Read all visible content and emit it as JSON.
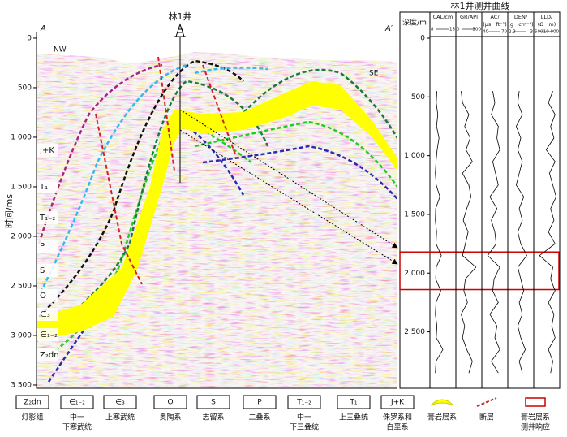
{
  "section": {
    "well": "林1井",
    "a_left": "A",
    "a_right": "A′",
    "nw": "NW",
    "se": "SE",
    "y_label": "时间/ms",
    "ylim": [
      -57,
      3533
    ],
    "yticks": [
      0,
      500,
      {
        "value": 1000,
        "label": "1 000"
      },
      {
        "value": 1500,
        "label": "1 500"
      },
      {
        "value": 2000,
        "label": "2 000"
      },
      {
        "value": 2500,
        "label": "2 500"
      },
      {
        "value": 3000,
        "label": "3 000"
      },
      {
        "value": 3500,
        "label": "3 500"
      }
    ],
    "layers": [
      "J+K",
      "T₁",
      "T₁₋₂",
      "P",
      "S",
      "O",
      "∈₃",
      "∈₁₋₂",
      "Z₂dn"
    ]
  },
  "log": {
    "title": "林1井测井曲线",
    "depth_label": "深度/m",
    "ylim": [
      0,
      2980
    ],
    "yticks": [
      0,
      500,
      {
        "value": 1000,
        "label": "1 000"
      },
      {
        "value": 1500,
        "label": "1 500"
      },
      {
        "value": 2000,
        "label": "2 000"
      },
      {
        "value": 2500,
        "label": "2 500"
      }
    ],
    "highlight": [
      1820,
      2140
    ],
    "depths": [
      450,
      550,
      650,
      750,
      850,
      950,
      1050,
      1150,
      1250,
      1350,
      1450,
      1550,
      1650,
      1750,
      1850,
      1950,
      2050,
      2150,
      2250,
      2350,
      2450,
      2550,
      2650,
      2750,
      2850
    ],
    "tracks": [
      {
        "name": [
          "CAL/cm"
        ],
        "scale": [
          8,
          15
        ],
        "values": [
          9.5,
          9.3,
          9.8,
          9.4,
          10.2,
          9.6,
          9.2,
          9.0,
          9.3,
          10.5,
          9.1,
          9.0,
          9.4,
          9.2,
          11.0,
          9.3,
          9.1,
          10.8,
          9.2,
          9.0,
          9.5,
          9.3,
          11.5,
          9.2,
          9.0
        ]
      },
      {
        "name": [
          "GR/API"
        ],
        "scale": [
          0,
          300
        ],
        "values": [
          40,
          60,
          150,
          90,
          170,
          110,
          200,
          60,
          150,
          180,
          120,
          70,
          140,
          100,
          60,
          250,
          100,
          80,
          130,
          40,
          90,
          60,
          120,
          200,
          150
        ]
      },
      {
        "name": [
          "AC/",
          "(μs · ft⁻¹)"
        ],
        "scale": [
          40,
          70
        ],
        "values": [
          52,
          55,
          50,
          60,
          58,
          62,
          52,
          56,
          60,
          48,
          58,
          50,
          55,
          57,
          45,
          62,
          54,
          52,
          60,
          48,
          58,
          55,
          62,
          50,
          60
        ]
      },
      {
        "name": [
          "DEN/",
          "(g · cm⁻³)"
        ],
        "scale": [
          2.3,
          3
        ],
        "values": [
          2.6,
          2.55,
          2.7,
          2.5,
          2.65,
          2.55,
          2.7,
          2.6,
          2.5,
          2.75,
          2.6,
          2.7,
          2.55,
          2.65,
          2.85,
          2.55,
          2.65,
          2.75,
          2.6,
          2.7,
          2.55,
          2.65,
          2.8,
          2.6,
          2.7
        ]
      },
      {
        "name": [
          "LLD/",
          "(Ω · m)"
        ],
        "scale": [
          500,
          {
            "value": 10000,
            "label": "10 000"
          }
        ],
        "values": [
          8000,
          6000,
          9000,
          7000,
          8500,
          5000,
          9000,
          6500,
          8000,
          9500,
          7000,
          8500,
          6000,
          9000,
          2000,
          8000,
          7000,
          9000,
          6000,
          8500,
          7500,
          9000,
          6000,
          8000,
          7000
        ]
      }
    ]
  },
  "legend": [
    {
      "symbol": "Z₂dn",
      "label": [
        "灯影组"
      ]
    },
    {
      "symbol": "∈₁₋₂",
      "label": [
        "中一",
        "下寒武统"
      ]
    },
    {
      "symbol": "∈₃",
      "label": [
        "上寒武统"
      ]
    },
    {
      "symbol": "O",
      "label": [
        "奥陶系"
      ]
    },
    {
      "symbol": "S",
      "label": [
        "志留系"
      ]
    },
    {
      "symbol": "P",
      "label": [
        "二叠系"
      ]
    },
    {
      "symbol": "T₁₋₂",
      "label": [
        "中一",
        "下三叠统"
      ]
    },
    {
      "symbol": "T₁",
      "label": [
        "上三叠统"
      ]
    },
    {
      "symbol": "J+K",
      "label": [
        "侏罗系和",
        "白垩系"
      ]
    },
    {
      "label": [
        "膏岩层系"
      ]
    },
    {
      "label": [
        "断层"
      ]
    },
    {
      "label": [
        "膏岩层系",
        "测井响应"
      ]
    }
  ]
}
